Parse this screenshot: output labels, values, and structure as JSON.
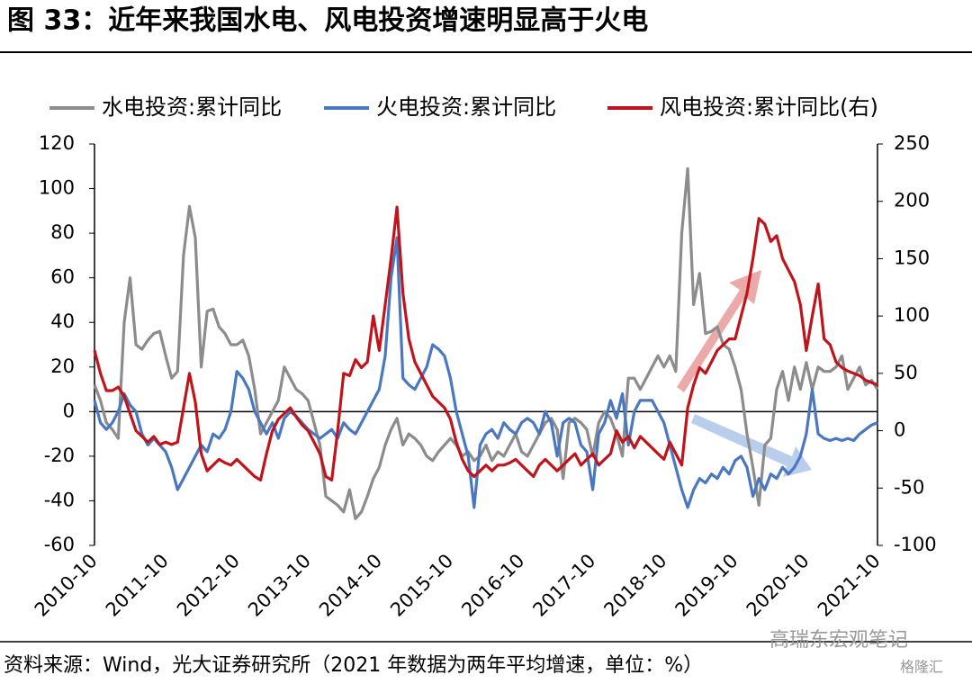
{
  "chart_data": {
    "type": "line",
    "title": "图 33：近年来我国水电、风电投资增速明显高于火电",
    "source": "资料来源：Wind，光大证券研究所（2021 年数据为两年平均增速，单位：%）",
    "watermark": [
      "高瑞东宏观笔记",
      "格隆汇"
    ],
    "categories": [
      "2010-10",
      null,
      null,
      null,
      null,
      null,
      null,
      null,
      null,
      null,
      null,
      null,
      "2011-10",
      null,
      null,
      null,
      null,
      null,
      null,
      null,
      null,
      null,
      null,
      null,
      "2012-10",
      null,
      null,
      null,
      null,
      null,
      null,
      null,
      null,
      null,
      null,
      null,
      "2013-10",
      null,
      null,
      null,
      null,
      null,
      null,
      null,
      null,
      null,
      null,
      null,
      "2014-10",
      null,
      null,
      null,
      null,
      null,
      null,
      null,
      null,
      null,
      null,
      null,
      "2015-10",
      null,
      null,
      null,
      null,
      null,
      null,
      null,
      null,
      null,
      null,
      null,
      "2016-10",
      null,
      null,
      null,
      null,
      null,
      null,
      null,
      null,
      null,
      null,
      null,
      "2017-10",
      null,
      null,
      null,
      null,
      null,
      null,
      null,
      null,
      null,
      null,
      null,
      "2018-10",
      null,
      null,
      null,
      null,
      null,
      null,
      null,
      null,
      null,
      null,
      null,
      "2019-10",
      null,
      null,
      null,
      null,
      null,
      null,
      null,
      null,
      null,
      null,
      null,
      "2020-10",
      null,
      null,
      null,
      null,
      null,
      null,
      null,
      null,
      null,
      null,
      null,
      "2021-10"
    ],
    "series": [
      {
        "name": "水电投资:累计同比",
        "color": "#8c8c8c",
        "values": [
          12,
          5,
          -5,
          -8,
          -12,
          40,
          60,
          30,
          28,
          32,
          35,
          36,
          25,
          15,
          18,
          70,
          92,
          78,
          20,
          45,
          46,
          38,
          35,
          30,
          30,
          32,
          25,
          10,
          -10,
          -5,
          0,
          5,
          20,
          15,
          10,
          8,
          5,
          -5,
          -15,
          -38,
          -40,
          -42,
          -45,
          -35,
          -48,
          -45,
          -38,
          -30,
          -25,
          -15,
          -8,
          -3,
          -15,
          -10,
          -12,
          -15,
          -20,
          -22,
          -18,
          -15,
          -12,
          -15,
          -20,
          -18,
          -22,
          -20,
          -15,
          -22,
          -18,
          -20,
          -15,
          -10,
          -18,
          -20,
          -15,
          -10,
          -5,
          -3,
          -8,
          -30,
          -5,
          -3,
          -5,
          -8,
          -20,
          -5,
          0,
          -3,
          -10,
          -20,
          15,
          15,
          10,
          15,
          20,
          25,
          20,
          25,
          18,
          80,
          109,
          48,
          62,
          35,
          36,
          38,
          30,
          28,
          20,
          10,
          -10,
          -25,
          -42,
          -15,
          -12,
          10,
          18,
          5,
          20,
          10,
          22,
          10,
          20,
          18,
          18,
          20,
          25,
          10,
          15,
          20,
          12,
          14,
          10
        ]
      },
      {
        "name": "火电投资:累计同比",
        "color": "#4a78c0",
        "values": [
          5,
          -5,
          -8,
          -5,
          0,
          8,
          3,
          0,
          -10,
          -15,
          -12,
          -15,
          -18,
          -25,
          -35,
          -30,
          -25,
          -20,
          -15,
          -18,
          -10,
          -12,
          -8,
          0,
          18,
          15,
          10,
          0,
          -5,
          -10,
          -5,
          -12,
          -3,
          0,
          -2,
          -5,
          -8,
          -10,
          -12,
          -10,
          -8,
          -12,
          -5,
          -8,
          -10,
          -5,
          0,
          5,
          10,
          25,
          60,
          78,
          15,
          12,
          10,
          15,
          20,
          30,
          28,
          25,
          15,
          0,
          -10,
          -20,
          -43,
          -15,
          -10,
          -8,
          -12,
          -5,
          -8,
          -10,
          -5,
          -3,
          -5,
          -10,
          0,
          -5,
          -20,
          -5,
          -3,
          -5,
          -15,
          -18,
          -35,
          -10,
          -5,
          5,
          -3,
          8,
          -15,
          0,
          5,
          5,
          5,
          0,
          -5,
          -15,
          -25,
          -35,
          -43,
          -35,
          -30,
          -32,
          -28,
          -30,
          -25,
          -28,
          -22,
          -20,
          -25,
          -38,
          -30,
          -35,
          -28,
          -30,
          -25,
          -28,
          -25,
          -20,
          -10,
          10,
          -10,
          -12,
          -13,
          -12,
          -13,
          -12,
          -13,
          -10,
          -8,
          -6,
          -5
        ]
      },
      {
        "name": "风电投资:累计同比(右)",
        "color": "#c0141c",
        "axis": "y2",
        "values": [
          70,
          50,
          35,
          35,
          38,
          30,
          15,
          0,
          -5,
          -10,
          -5,
          -12,
          -10,
          -12,
          -10,
          20,
          50,
          25,
          -20,
          -35,
          -30,
          -25,
          -28,
          -30,
          -25,
          -30,
          -35,
          -40,
          -43,
          -20,
          0,
          10,
          15,
          20,
          12,
          5,
          0,
          -10,
          -20,
          -40,
          -43,
          0,
          50,
          48,
          62,
          55,
          60,
          100,
          70,
          110,
          150,
          195,
          120,
          80,
          60,
          50,
          40,
          30,
          25,
          20,
          10,
          -10,
          -25,
          -35,
          -40,
          -35,
          -30,
          -35,
          -30,
          -30,
          -28,
          -25,
          -30,
          -35,
          -40,
          -30,
          -25,
          -30,
          -35,
          -30,
          -25,
          -20,
          -30,
          -25,
          -20,
          -30,
          -25,
          -20,
          0,
          -10,
          -5,
          -15,
          -5,
          -10,
          -15,
          -20,
          -25,
          -10,
          -20,
          -30,
          20,
          40,
          55,
          50,
          60,
          70,
          75,
          80,
          80,
          100,
          120,
          150,
          185,
          180,
          165,
          170,
          150,
          140,
          130,
          110,
          70,
          100,
          128,
          80,
          75,
          60,
          55,
          52,
          50,
          48,
          44,
          42,
          40
        ]
      }
    ],
    "ylim": [
      -60,
      120
    ],
    "yticks": [
      -60,
      -40,
      -20,
      0,
      20,
      40,
      60,
      80,
      100,
      120
    ],
    "y2lim": [
      -100,
      250
    ],
    "y2ticks": [
      -100,
      -50,
      0,
      50,
      100,
      150,
      200,
      250
    ],
    "legend": "top"
  }
}
